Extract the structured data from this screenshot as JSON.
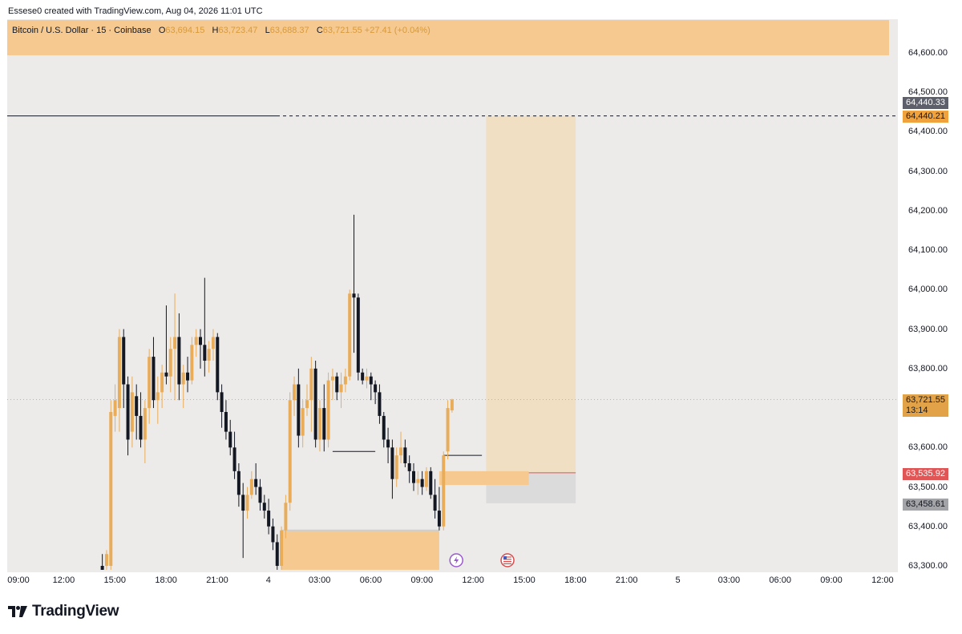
{
  "credit": "Essese0 created with TradingView.com, Aug 04, 2026 11:01 UTC",
  "legend": {
    "symbol": "Bitcoin / U.S. Dollar · 15 · Coinbase",
    "o_key": "O",
    "o_val": "63,694.15",
    "h_key": "H",
    "h_val": "63,723.47",
    "l_key": "L",
    "l_val": "63,688.37",
    "c_key": "C",
    "c_val": "63,721.55",
    "change": "+27.41 (+0.04%)"
  },
  "colors": {
    "bull": "#e9ad5a",
    "bear": "#131722",
    "zone": "#f5c98f",
    "target": "#f1dfc4",
    "stop": "#dcdbdb",
    "stop_line": "#e05555"
  },
  "price_tags": {
    "level_top": "64,440.33",
    "level_line": "64,440.21",
    "last_price": "63,721.55",
    "countdown": "13:14",
    "stop": "63,535.92",
    "lower": "63,458.61"
  },
  "footer": {
    "brand": "TradingView"
  },
  "chart_data": {
    "type": "candlestick",
    "symbol": "BTCUSD",
    "interval": "15",
    "y_axis": {
      "ticks": [
        64600,
        64500,
        64400,
        64300,
        64200,
        64100,
        64000,
        63900,
        63800,
        63600,
        63500,
        63400,
        63300
      ],
      "tick_labels": [
        "64,600.00",
        "64,500.00",
        "64,400.00",
        "64,300.00",
        "64,200.00",
        "64,100.00",
        "64,000.00",
        "63,900.00",
        "63,800.00",
        "63,600.00",
        "63,500.00",
        "63,400.00",
        "63,300.00"
      ],
      "range": [
        63290,
        64700
      ]
    },
    "x_axis": {
      "tick_labels": [
        "09:00",
        "12:00",
        "15:00",
        "18:00",
        "21:00",
        "4",
        "03:00",
        "06:00",
        "09:00",
        "12:00",
        "15:00",
        "18:00",
        "21:00",
        "5",
        "03:00",
        "06:00",
        "09:00",
        "12:00"
      ],
      "tick_index": [
        0,
        12,
        24,
        36,
        48,
        60,
        72,
        84,
        96,
        108,
        120,
        132,
        144,
        156,
        168,
        180,
        192,
        204
      ]
    },
    "candles": [
      {
        "i": 22,
        "o": 63300,
        "h": 63330,
        "l": 63290,
        "c": 63290
      },
      {
        "i": 23,
        "o": 63300,
        "h": 63340,
        "l": 63290,
        "c": 63330
      },
      {
        "i": 24,
        "o": 63300,
        "h": 63720,
        "l": 63290,
        "c": 63690
      },
      {
        "i": 25,
        "o": 63680,
        "h": 63760,
        "l": 63640,
        "c": 63720
      },
      {
        "i": 26,
        "o": 63700,
        "h": 63900,
        "l": 63640,
        "c": 63880
      },
      {
        "i": 27,
        "o": 63880,
        "h": 63900,
        "l": 63700,
        "c": 63760
      },
      {
        "i": 28,
        "o": 63760,
        "h": 63780,
        "l": 63580,
        "c": 63620
      },
      {
        "i": 29,
        "o": 63640,
        "h": 63780,
        "l": 63600,
        "c": 63740
      },
      {
        "i": 30,
        "o": 63730,
        "h": 63760,
        "l": 63620,
        "c": 63680
      },
      {
        "i": 31,
        "o": 63680,
        "h": 63740,
        "l": 63600,
        "c": 63620
      },
      {
        "i": 32,
        "o": 63620,
        "h": 63720,
        "l": 63560,
        "c": 63700
      },
      {
        "i": 33,
        "o": 63700,
        "h": 63850,
        "l": 63660,
        "c": 63830
      },
      {
        "i": 34,
        "o": 63830,
        "h": 63880,
        "l": 63700,
        "c": 63720
      },
      {
        "i": 35,
        "o": 63720,
        "h": 63780,
        "l": 63660,
        "c": 63740
      },
      {
        "i": 36,
        "o": 63740,
        "h": 63810,
        "l": 63700,
        "c": 63790
      },
      {
        "i": 37,
        "o": 63790,
        "h": 63960,
        "l": 63760,
        "c": 63780
      },
      {
        "i": 38,
        "o": 63780,
        "h": 63880,
        "l": 63740,
        "c": 63850
      },
      {
        "i": 39,
        "o": 63850,
        "h": 63990,
        "l": 63720,
        "c": 63880
      },
      {
        "i": 40,
        "o": 63880,
        "h": 63940,
        "l": 63720,
        "c": 63760
      },
      {
        "i": 41,
        "o": 63760,
        "h": 63810,
        "l": 63700,
        "c": 63790
      },
      {
        "i": 42,
        "o": 63790,
        "h": 63830,
        "l": 63740,
        "c": 63770
      },
      {
        "i": 43,
        "o": 63770,
        "h": 63880,
        "l": 63760,
        "c": 63860
      },
      {
        "i": 44,
        "o": 63860,
        "h": 63900,
        "l": 63830,
        "c": 63880
      },
      {
        "i": 45,
        "o": 63880,
        "h": 63900,
        "l": 63800,
        "c": 63860
      },
      {
        "i": 46,
        "o": 63860,
        "h": 64030,
        "l": 63780,
        "c": 63820
      },
      {
        "i": 47,
        "o": 63820,
        "h": 63870,
        "l": 63790,
        "c": 63850
      },
      {
        "i": 48,
        "o": 63850,
        "h": 63900,
        "l": 63820,
        "c": 63880
      },
      {
        "i": 49,
        "o": 63880,
        "h": 63890,
        "l": 63720,
        "c": 63740
      },
      {
        "i": 50,
        "o": 63740,
        "h": 63760,
        "l": 63650,
        "c": 63690
      },
      {
        "i": 51,
        "o": 63690,
        "h": 63720,
        "l": 63620,
        "c": 63640
      },
      {
        "i": 52,
        "o": 63640,
        "h": 63670,
        "l": 63580,
        "c": 63600
      },
      {
        "i": 53,
        "o": 63600,
        "h": 63640,
        "l": 63520,
        "c": 63540
      },
      {
        "i": 54,
        "o": 63540,
        "h": 63560,
        "l": 63450,
        "c": 63480
      },
      {
        "i": 55,
        "o": 63480,
        "h": 63510,
        "l": 63320,
        "c": 63440
      },
      {
        "i": 56,
        "o": 63440,
        "h": 63500,
        "l": 63420,
        "c": 63480
      },
      {
        "i": 57,
        "o": 63480,
        "h": 63540,
        "l": 63470,
        "c": 63520
      },
      {
        "i": 58,
        "o": 63520,
        "h": 63560,
        "l": 63480,
        "c": 63500
      },
      {
        "i": 59,
        "o": 63500,
        "h": 63520,
        "l": 63440,
        "c": 63460
      },
      {
        "i": 60,
        "o": 63460,
        "h": 63480,
        "l": 63420,
        "c": 63440
      },
      {
        "i": 61,
        "o": 63440,
        "h": 63470,
        "l": 63380,
        "c": 63400
      },
      {
        "i": 62,
        "o": 63400,
        "h": 63420,
        "l": 63340,
        "c": 63360
      },
      {
        "i": 63,
        "o": 63360,
        "h": 63380,
        "l": 63290,
        "c": 63300
      },
      {
        "i": 64,
        "o": 63300,
        "h": 63400,
        "l": 63290,
        "c": 63390
      },
      {
        "i": 65,
        "o": 63390,
        "h": 63480,
        "l": 63370,
        "c": 63460
      },
      {
        "i": 66,
        "o": 63460,
        "h": 63740,
        "l": 63440,
        "c": 63720
      },
      {
        "i": 67,
        "o": 63720,
        "h": 63780,
        "l": 63680,
        "c": 63760
      },
      {
        "i": 68,
        "o": 63760,
        "h": 63800,
        "l": 63600,
        "c": 63630
      },
      {
        "i": 69,
        "o": 63630,
        "h": 63720,
        "l": 63600,
        "c": 63700
      },
      {
        "i": 70,
        "o": 63700,
        "h": 63760,
        "l": 63680,
        "c": 63720
      },
      {
        "i": 71,
        "o": 63720,
        "h": 63830,
        "l": 63640,
        "c": 63800
      },
      {
        "i": 72,
        "o": 63800,
        "h": 63820,
        "l": 63600,
        "c": 63620
      },
      {
        "i": 73,
        "o": 63620,
        "h": 63720,
        "l": 63590,
        "c": 63700
      },
      {
        "i": 74,
        "o": 63700,
        "h": 63760,
        "l": 63590,
        "c": 63620
      },
      {
        "i": 75,
        "o": 63620,
        "h": 63790,
        "l": 63600,
        "c": 63770
      },
      {
        "i": 76,
        "o": 63770,
        "h": 63800,
        "l": 63720,
        "c": 63780
      },
      {
        "i": 77,
        "o": 63780,
        "h": 63790,
        "l": 63720,
        "c": 63740
      },
      {
        "i": 78,
        "o": 63740,
        "h": 63790,
        "l": 63700,
        "c": 63760
      },
      {
        "i": 79,
        "o": 63760,
        "h": 63800,
        "l": 63740,
        "c": 63780
      },
      {
        "i": 80,
        "o": 63780,
        "h": 64000,
        "l": 63770,
        "c": 63990
      },
      {
        "i": 81,
        "o": 63990,
        "h": 64190,
        "l": 63840,
        "c": 63980
      },
      {
        "i": 82,
        "o": 63980,
        "h": 63990,
        "l": 63770,
        "c": 63790
      },
      {
        "i": 83,
        "o": 63790,
        "h": 63800,
        "l": 63760,
        "c": 63770
      },
      {
        "i": 84,
        "o": 63770,
        "h": 63800,
        "l": 63750,
        "c": 63780
      },
      {
        "i": 85,
        "o": 63780,
        "h": 63790,
        "l": 63720,
        "c": 63760
      },
      {
        "i": 86,
        "o": 63760,
        "h": 63770,
        "l": 63710,
        "c": 63740
      },
      {
        "i": 87,
        "o": 63740,
        "h": 63760,
        "l": 63660,
        "c": 63680
      },
      {
        "i": 88,
        "o": 63680,
        "h": 63690,
        "l": 63600,
        "c": 63620
      },
      {
        "i": 89,
        "o": 63620,
        "h": 63650,
        "l": 63560,
        "c": 63600
      },
      {
        "i": 90,
        "o": 63600,
        "h": 63620,
        "l": 63470,
        "c": 63520
      },
      {
        "i": 91,
        "o": 63520,
        "h": 63600,
        "l": 63500,
        "c": 63580
      },
      {
        "i": 92,
        "o": 63580,
        "h": 63640,
        "l": 63560,
        "c": 63600
      },
      {
        "i": 93,
        "o": 63600,
        "h": 63620,
        "l": 63550,
        "c": 63560
      },
      {
        "i": 94,
        "o": 63560,
        "h": 63580,
        "l": 63510,
        "c": 63540
      },
      {
        "i": 95,
        "o": 63540,
        "h": 63560,
        "l": 63490,
        "c": 63510
      },
      {
        "i": 96,
        "o": 63510,
        "h": 63540,
        "l": 63480,
        "c": 63520
      },
      {
        "i": 97,
        "o": 63520,
        "h": 63540,
        "l": 63480,
        "c": 63500
      },
      {
        "i": 98,
        "o": 63500,
        "h": 63550,
        "l": 63490,
        "c": 63540
      },
      {
        "i": 99,
        "o": 63540,
        "h": 63550,
        "l": 63470,
        "c": 63480
      },
      {
        "i": 100,
        "o": 63480,
        "h": 63520,
        "l": 63420,
        "c": 63440
      },
      {
        "i": 101,
        "o": 63440,
        "h": 63500,
        "l": 63390,
        "c": 63400
      },
      {
        "i": 102,
        "o": 63400,
        "h": 63590,
        "l": 63390,
        "c": 63580
      },
      {
        "i": 103,
        "o": 63590,
        "h": 63720,
        "l": 63570,
        "c": 63700
      },
      {
        "i": 104,
        "o": 63694.15,
        "h": 63723.47,
        "l": 63688.37,
        "c": 63721.55
      }
    ],
    "levels": [
      {
        "price": 64440.21,
        "from_i": 0,
        "style": "solid_then_dashed"
      },
      {
        "price": 63590,
        "from_i": 76,
        "to_i": 86,
        "style": "solid"
      },
      {
        "price": 63580,
        "from_i": 102,
        "to_i": 111,
        "style": "solid"
      }
    ],
    "zones": [
      {
        "from_i": 64,
        "to_i": 101,
        "top": 63390,
        "bottom": 63290,
        "kind": "demand"
      },
      {
        "from_i": 101,
        "to_i": 122,
        "top": 63540,
        "bottom": 63505,
        "kind": "entry"
      }
    ],
    "position": {
      "from_i": 112,
      "to_i": 133,
      "entry": 63535.92,
      "target": 64440.21,
      "stop": 63458.61
    },
    "events": [
      {
        "i": 105,
        "kind": "lightning-event"
      },
      {
        "i": 117,
        "kind": "us-flag-event"
      }
    ]
  }
}
